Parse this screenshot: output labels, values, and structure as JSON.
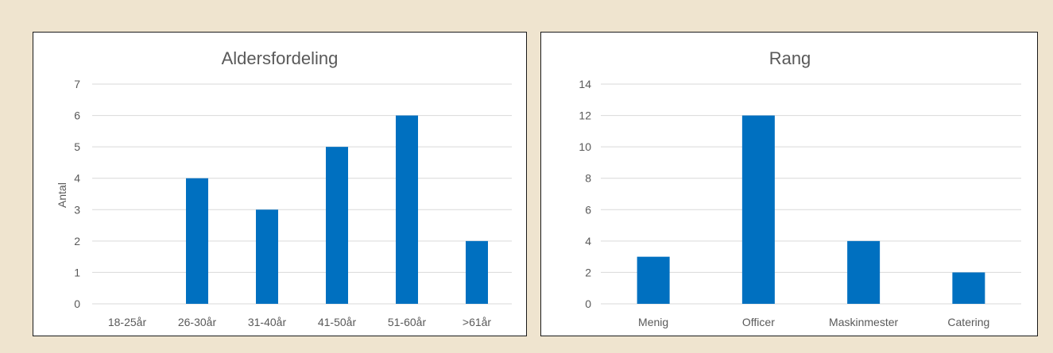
{
  "chart_data": [
    {
      "type": "bar",
      "title": "Aldersfordeling",
      "ylabel": "Antal",
      "xlabel": "",
      "categories": [
        "18-25år",
        "26-30år",
        "31-40år",
        "41-50år",
        "51-60år",
        ">61år"
      ],
      "values": [
        0,
        4,
        3,
        5,
        6,
        2
      ],
      "ylim": [
        0,
        7
      ],
      "yticks": [
        0,
        1,
        2,
        3,
        4,
        5,
        6,
        7
      ],
      "grid": true,
      "color": "#0070c0"
    },
    {
      "type": "bar",
      "title": "Rang",
      "ylabel": "",
      "xlabel": "",
      "categories": [
        "Menig",
        "Officer",
        "Maskinmester",
        "Catering"
      ],
      "values": [
        3,
        12,
        4,
        2
      ],
      "ylim": [
        0,
        14
      ],
      "yticks": [
        0,
        2,
        4,
        6,
        8,
        10,
        12,
        14
      ],
      "grid": true,
      "color": "#0070c0"
    }
  ]
}
